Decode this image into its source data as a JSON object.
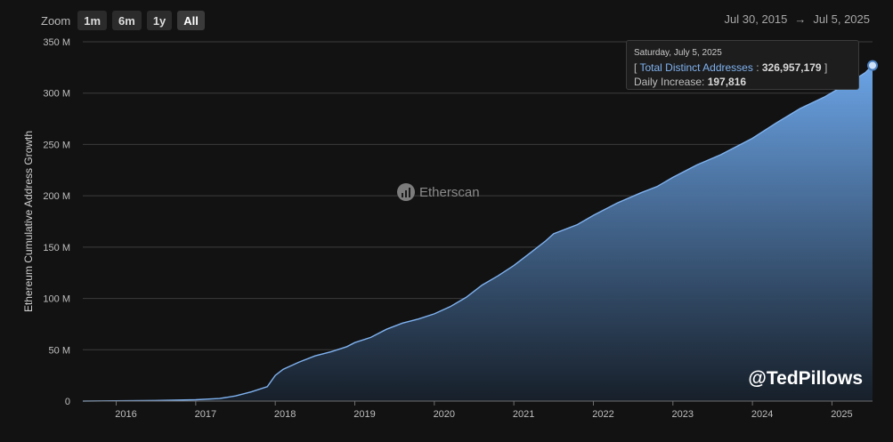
{
  "toolbar": {
    "zoom_label": "Zoom",
    "buttons": [
      "1m",
      "6m",
      "1y",
      "All"
    ],
    "active": "All"
  },
  "range": {
    "from": "Jul 30, 2015",
    "arrow": "→",
    "to": "Jul 5, 2025"
  },
  "watermark": "Etherscan",
  "handle": "@TedPillows",
  "tooltip": {
    "date": "Saturday, July 5, 2025",
    "open_bracket": "[",
    "series_label": "Total Distinct Addresses",
    "separator": " : ",
    "value": "326,957,179",
    "close_bracket": "]",
    "increase_label": "Daily Increase: ",
    "increase_value": "197,816"
  },
  "colors": {
    "line": "#7fb2f0",
    "fill_top": "#6ba4e6",
    "fill_bottom": "#17202b",
    "grid": "#3c3c3c"
  },
  "chart_data": {
    "type": "area",
    "ylabel": "Ethereum Cumulative Address Growth",
    "xlabel": "",
    "y_unit": "M",
    "ylim": [
      0,
      350
    ],
    "y_ticks": [
      0,
      50,
      100,
      150,
      200,
      250,
      300,
      350
    ],
    "y_tick_labels": [
      "0",
      "50 M",
      "100 M",
      "150 M",
      "200 M",
      "250 M",
      "300 M",
      "350 M"
    ],
    "xlim": [
      2015.58,
      2025.51
    ],
    "x_ticks": [
      2016,
      2017,
      2018,
      2019,
      2020,
      2021,
      2022,
      2023,
      2024,
      2025
    ],
    "x_tick_labels": [
      "2016",
      "2017",
      "2018",
      "2019",
      "2020",
      "2021",
      "2022",
      "2023",
      "2024",
      "2025"
    ],
    "grid": true,
    "series": [
      {
        "name": "Total Distinct Addresses",
        "x": [
          2015.58,
          2016.0,
          2016.5,
          2017.0,
          2017.3,
          2017.5,
          2017.7,
          2017.9,
          2018.0,
          2018.1,
          2018.3,
          2018.5,
          2018.7,
          2018.9,
          2019.0,
          2019.2,
          2019.4,
          2019.6,
          2019.8,
          2020.0,
          2020.2,
          2020.4,
          2020.6,
          2020.8,
          2021.0,
          2021.2,
          2021.4,
          2021.5,
          2021.8,
          2022.0,
          2022.3,
          2022.6,
          2022.8,
          2023.0,
          2023.3,
          2023.6,
          2024.0,
          2024.3,
          2024.6,
          2024.9,
          2025.1,
          2025.3,
          2025.42,
          2025.51
        ],
        "values": [
          0,
          0.3,
          0.6,
          1.3,
          2.5,
          5,
          9,
          14,
          25,
          31,
          38,
          44,
          48,
          53,
          57,
          62,
          70,
          76,
          80,
          85,
          92,
          101,
          113,
          122,
          132,
          144,
          156,
          163,
          172,
          181,
          193,
          203,
          209,
          218,
          230,
          240,
          256,
          271,
          285,
          296,
          305,
          314,
          320,
          327
        ]
      }
    ],
    "highlight": {
      "x": 2025.51,
      "y": 326.957179
    }
  }
}
